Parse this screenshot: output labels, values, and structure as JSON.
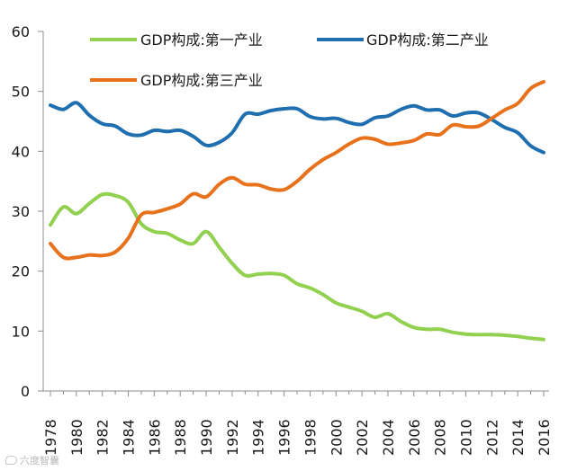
{
  "chart_data": {
    "type": "line",
    "title": "",
    "xlabel": "",
    "ylabel": "",
    "ylim": [
      0,
      60
    ],
    "yticks": [
      0,
      10,
      20,
      30,
      40,
      50,
      60
    ],
    "xlim": [
      1978,
      2016
    ],
    "xticks": [
      1978,
      1980,
      1982,
      1984,
      1986,
      1988,
      1990,
      1992,
      1994,
      1996,
      1998,
      2000,
      2002,
      2004,
      2006,
      2008,
      2010,
      2012,
      2014,
      2016
    ],
    "grid": false,
    "legend_position": "top",
    "x": [
      1978,
      1979,
      1980,
      1981,
      1982,
      1983,
      1984,
      1985,
      1986,
      1987,
      1988,
      1989,
      1990,
      1991,
      1992,
      1993,
      1994,
      1995,
      1996,
      1997,
      1998,
      1999,
      2000,
      2001,
      2002,
      2003,
      2004,
      2005,
      2006,
      2007,
      2008,
      2009,
      2010,
      2011,
      2012,
      2013,
      2014,
      2015,
      2016
    ],
    "series": [
      {
        "name": "GDP构成:第一产业",
        "color": "#92d050",
        "values": [
          27.7,
          30.7,
          29.6,
          31.3,
          32.8,
          32.6,
          31.5,
          27.9,
          26.6,
          26.3,
          25.2,
          24.6,
          26.6,
          24.0,
          21.3,
          19.3,
          19.5,
          19.6,
          19.3,
          17.9,
          17.2,
          16.1,
          14.7,
          14.0,
          13.3,
          12.3,
          12.9,
          11.6,
          10.6,
          10.3,
          10.3,
          9.8,
          9.5,
          9.4,
          9.4,
          9.3,
          9.1,
          8.8,
          8.6
        ]
      },
      {
        "name": "GDP构成:第二产业",
        "color": "#1f6fb0",
        "values": [
          47.7,
          47.0,
          48.1,
          46.0,
          44.6,
          44.2,
          42.9,
          42.7,
          43.5,
          43.3,
          43.5,
          42.5,
          41.0,
          41.5,
          43.1,
          46.2,
          46.2,
          46.8,
          47.1,
          47.1,
          45.8,
          45.4,
          45.5,
          44.8,
          44.5,
          45.6,
          45.9,
          47.0,
          47.6,
          46.9,
          46.9,
          45.9,
          46.4,
          46.4,
          45.3,
          44.0,
          43.1,
          40.9,
          39.8
        ]
      },
      {
        "name": "GDP构成:第三产业",
        "color": "#e8711c",
        "values": [
          24.6,
          22.3,
          22.3,
          22.7,
          22.6,
          23.2,
          25.5,
          29.4,
          29.8,
          30.4,
          31.2,
          32.9,
          32.4,
          34.5,
          35.6,
          34.5,
          34.4,
          33.7,
          33.6,
          35.0,
          37.0,
          38.6,
          39.8,
          41.2,
          42.2,
          42.0,
          41.2,
          41.4,
          41.8,
          42.9,
          42.8,
          44.4,
          44.1,
          44.2,
          45.5,
          46.9,
          48.0,
          50.5,
          51.6
        ]
      }
    ]
  },
  "legend": {
    "primary": "GDP构成:第一产业",
    "secondary": "GDP构成:第二产业",
    "tertiary": "GDP构成:第三产业"
  },
  "watermark": {
    "text": "六度智囊"
  }
}
